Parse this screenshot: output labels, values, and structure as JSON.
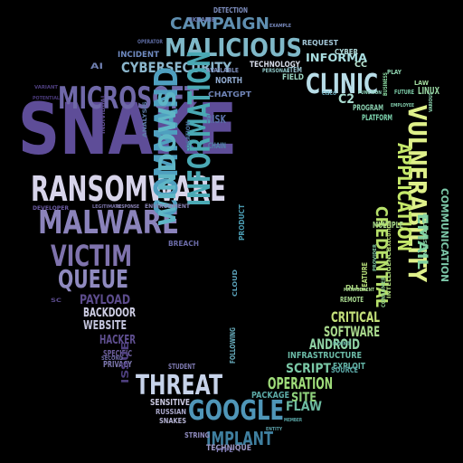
{
  "word_cloud": {
    "background": "#000000",
    "palette": [
      "#3b2a6b",
      "#5a3f8f",
      "#6a5aa8",
      "#8a82b8",
      "#c8c6e0",
      "#2e6e8e",
      "#3a9a9a",
      "#56b5a0",
      "#9ad86a",
      "#d8ec7a"
    ],
    "words": [
      {
        "text": "SNAKE",
        "color": "#5e4d98"
      },
      {
        "text": "RANSOMWARE",
        "color": "#d7d4ea"
      },
      {
        "text": "MALWARE",
        "color": "#8b83bb"
      },
      {
        "text": "VICTIM",
        "color": "#7f73ad"
      },
      {
        "text": "QUEUE",
        "color": "#8f8abf"
      },
      {
        "text": "MICROSOFT",
        "color": "#6f68a8"
      },
      {
        "text": "MALICIOUS",
        "color": "#7fb8c8"
      },
      {
        "text": "CAMPAIGN",
        "color": "#5f8fb0"
      },
      {
        "text": "CYBERSECURITY",
        "color": "#8bb6cc"
      },
      {
        "text": "CLINIC",
        "color": "#b8dde8"
      },
      {
        "text": "VULNERABILITY",
        "color": "#dff08a"
      },
      {
        "text": "APPLICATION",
        "color": "#c5e86a"
      },
      {
        "text": "EMAIL",
        "color": "#7fd2a0"
      },
      {
        "text": "COMMUNICATION",
        "color": "#7cc7a8"
      },
      {
        "text": "CREDENTIAL",
        "color": "#b6e06a"
      },
      {
        "text": "COMMAND",
        "color": "#4f9fbf"
      },
      {
        "text": "WINDOWS",
        "color": "#5fb6c6"
      },
      {
        "text": "INFORMATION",
        "color": "#4aa9b4"
      },
      {
        "text": "THREAT",
        "color": "#c7d3ea"
      },
      {
        "text": "GOOGLE",
        "color": "#4f96b8"
      },
      {
        "text": "IMPLANT",
        "color": "#3f7f9f"
      },
      {
        "text": "OPERATION",
        "color": "#9fdc7a"
      },
      {
        "text": "SITE",
        "color": "#8fd27c"
      },
      {
        "text": "CRITICAL",
        "color": "#c4e07a"
      },
      {
        "text": "SOFTWARE",
        "color": "#a8d88c"
      },
      {
        "text": "ANDROID",
        "color": "#8fd2a4"
      },
      {
        "text": "SCRIPT",
        "color": "#7ac8a6"
      },
      {
        "text": "INFRASTRUCTURE",
        "color": "#6cbca8"
      },
      {
        "text": "EXPLOIT",
        "color": "#63b3a6"
      },
      {
        "text": "SOURCE",
        "color": "#5aa6a4"
      },
      {
        "text": "FLAW",
        "color": "#6cbaa0"
      },
      {
        "text": "PACKAGE",
        "color": "#5caaa6"
      },
      {
        "text": "PAYLOAD",
        "color": "#5c4c8c"
      },
      {
        "text": "BACKDOOR",
        "color": "#d0d0e6"
      },
      {
        "text": "WEBSITE",
        "color": "#c3c4dc"
      },
      {
        "text": "HACKER",
        "color": "#5f4f90"
      },
      {
        "text": "SPECIFIC",
        "color": "#6b5d9b"
      },
      {
        "text": "PRIVACY",
        "color": "#7e78b0"
      },
      {
        "text": "ISSUE",
        "color": "#4e3f7f"
      },
      {
        "text": "SENSITIVE",
        "color": "#c9c8e0"
      },
      {
        "text": "RUSSIAN",
        "color": "#a8a6c8"
      },
      {
        "text": "SNAKES",
        "color": "#b4b2d2"
      },
      {
        "text": "STRING",
        "color": "#8f8bbe"
      },
      {
        "text": "TECHNIQUE",
        "color": "#9a97c4"
      },
      {
        "text": "TECHNOLOGY",
        "color": "#d6dbe8"
      },
      {
        "text": "INFORMA",
        "color": "#a8dde0"
      },
      {
        "text": "INCIDENT",
        "color": "#6f8ac0"
      },
      {
        "text": "OPERATOR",
        "color": "#5c6aa0"
      },
      {
        "text": "DETECTION",
        "color": "#7f8fc0"
      },
      {
        "text": "UKRAINE",
        "color": "#6f7fb8"
      },
      {
        "text": "NORTH",
        "color": "#8fa8cc"
      },
      {
        "text": "RISK",
        "color": "#5a6fa8"
      },
      {
        "text": "CHAIN",
        "color": "#4f84a8"
      },
      {
        "text": "CHATGPT",
        "color": "#6f84b6"
      },
      {
        "text": "POTENTIAL",
        "color": "#4a3a7a"
      },
      {
        "text": "VARIANT",
        "color": "#4f3f80"
      },
      {
        "text": "DEVELOPER",
        "color": "#6a5aa0"
      },
      {
        "text": "ENVIRONMENT",
        "color": "#8b86b8"
      },
      {
        "text": "LEGITIMATE",
        "color": "#7a72a8"
      },
      {
        "text": "RESPONSE",
        "color": "#8e86ba"
      },
      {
        "text": "ANALYSIS",
        "color": "#5e7aa8"
      },
      {
        "text": "INDIVIDUAL",
        "color": "#5b4a8c"
      },
      {
        "text": "LOCATION",
        "color": "#4a6f9c"
      },
      {
        "text": "AVAILABLE",
        "color": "#7f8fbc"
      },
      {
        "text": "BREACH",
        "color": "#6a6aa6"
      },
      {
        "text": "CLOUD",
        "color": "#5aa0b8"
      },
      {
        "text": "FOLLOWING",
        "color": "#6ab0c0"
      },
      {
        "text": "PRODUCT",
        "color": "#4a9ab0"
      },
      {
        "text": "STUDENT",
        "color": "#7f7bb2"
      },
      {
        "text": "SECOND",
        "color": "#6e6aa6"
      },
      {
        "text": "FEATURE",
        "color": "#b8e07a"
      },
      {
        "text": "MULTIPLE",
        "color": "#a8d88a"
      },
      {
        "text": "CONSUMER",
        "color": "#8ccc8c"
      },
      {
        "text": "REMOTE",
        "color": "#a8d890"
      },
      {
        "text": "PLATFORM",
        "color": "#7ed6b0"
      },
      {
        "text": "PROGRAM",
        "color": "#8ad0b0"
      },
      {
        "text": "BUSINESS",
        "color": "#8ad8a0"
      },
      {
        "text": "LINUX",
        "color": "#9ad8a4"
      },
      {
        "text": "FUTURE",
        "color": "#7ccca8"
      },
      {
        "text": "LAW",
        "color": "#a4dca0"
      },
      {
        "text": "PLAY",
        "color": "#8fd4b0"
      },
      {
        "text": "FIELD",
        "color": "#9ad4c0"
      },
      {
        "text": "ITEM",
        "color": "#9ac4d0"
      },
      {
        "text": "REQUEST",
        "color": "#a4c8d8"
      },
      {
        "text": "CYBER",
        "color": "#b0d8d8"
      },
      {
        "text": "CC",
        "color": "#b8e4d0"
      },
      {
        "text": "C2",
        "color": "#aadcd0"
      },
      {
        "text": "AI",
        "color": "#6f7fb0"
      },
      {
        "text": "SC",
        "color": "#5a4a8a"
      },
      {
        "text": "DLL",
        "color": "#b0dc80"
      },
      {
        "text": "CISCO",
        "color": "#6fb0c0"
      },
      {
        "text": "PERSONAL",
        "color": "#8fc8c8"
      },
      {
        "text": "EMPLOYEE",
        "color": "#7fc8a8"
      },
      {
        "text": "INTELLIGENCE",
        "color": "#b0de7c"
      },
      {
        "text": "EXECUTION",
        "color": "#c0e27a"
      },
      {
        "text": "INVESTIGATION",
        "color": "#8ad0a8"
      },
      {
        "text": "MANAGEMENT",
        "color": "#a8d890"
      },
      {
        "text": "PROVIDER",
        "color": "#7ec8a0"
      },
      {
        "text": "POINT",
        "color": "#6cb8a8"
      },
      {
        "text": "MEMBER",
        "color": "#5aa8a8"
      },
      {
        "text": "ENTITY",
        "color": "#5ca0a8"
      },
      {
        "text": "TYPE",
        "color": "#7f7bb4"
      },
      {
        "text": "EXAMPLE",
        "color": "#7a8cc0"
      },
      {
        "text": "FUNCTION",
        "color": "#8ad0b8"
      },
      {
        "text": "VARIOUS",
        "color": "#8ed4b0"
      }
    ]
  }
}
